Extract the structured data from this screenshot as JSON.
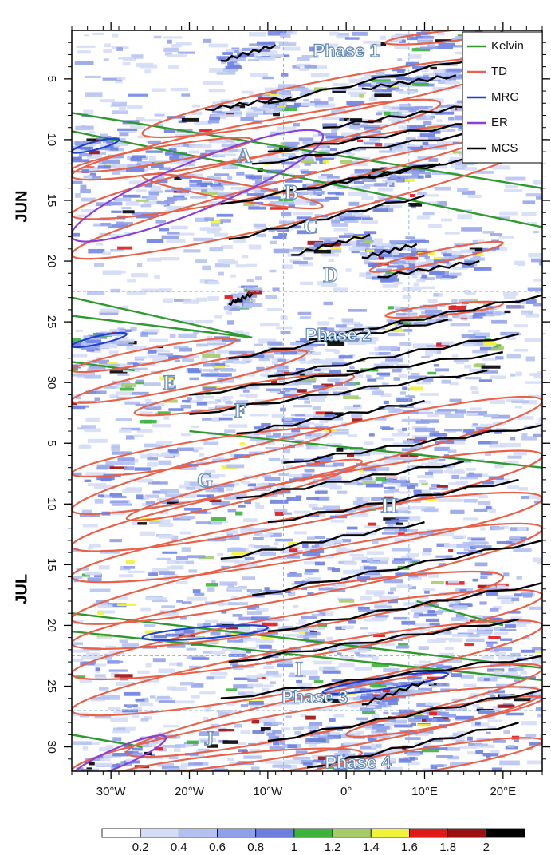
{
  "chart_data": {
    "type": "heatmap",
    "title": "",
    "xlabel": "",
    "ylabel": "",
    "xlim": [
      -35,
      25
    ],
    "x_ticks": [
      {
        "value": -30,
        "label": "30°W"
      },
      {
        "value": -20,
        "label": "20°W"
      },
      {
        "value": -10,
        "label": "10°W"
      },
      {
        "value": 0,
        "label": "0°"
      },
      {
        "value": 10,
        "label": "10°E"
      },
      {
        "value": 20,
        "label": "20°E"
      }
    ],
    "ylim_days_since_jun1": [
      0,
      61
    ],
    "months": [
      {
        "label": "JUN",
        "center_day": 14.5
      },
      {
        "label": "JUL",
        "center_day": 46
      }
    ],
    "y_ticks": [
      {
        "day": 4,
        "label": "5"
      },
      {
        "day": 9,
        "label": "10"
      },
      {
        "day": 14,
        "label": "15"
      },
      {
        "day": 19,
        "label": "20"
      },
      {
        "day": 24,
        "label": "25"
      },
      {
        "day": 29,
        "label": "30"
      },
      {
        "day": 34,
        "label": "5"
      },
      {
        "day": 39,
        "label": "10"
      },
      {
        "day": 44,
        "label": "15"
      },
      {
        "day": 49,
        "label": "20"
      },
      {
        "day": 54,
        "label": "25"
      },
      {
        "day": 59,
        "label": "30"
      }
    ],
    "legend": {
      "placement": "top-right",
      "items": [
        {
          "name": "Kelvin",
          "color": "#2e9a2e"
        },
        {
          "name": "TD",
          "color": "#e8624a"
        },
        {
          "name": "MRG",
          "color": "#1f3fd0"
        },
        {
          "name": "ER",
          "color": "#8a3fd6"
        },
        {
          "name": "MCS",
          "color": "#000000"
        }
      ]
    },
    "colorbar": {
      "labels": [
        "0.2",
        "0.4",
        "0.6",
        "0.8",
        "1",
        "1.2",
        "1.4",
        "1.6",
        "1.8",
        "2"
      ],
      "colors": [
        "#ffffff",
        "#d4dcf6",
        "#b3c1f0",
        "#8f9fe8",
        "#6c7fe0",
        "#3cb43c",
        "#a6cc6a",
        "#f2f23a",
        "#e01818",
        "#9c1010",
        "#000000"
      ]
    },
    "annotations": [
      {
        "text": "A",
        "x": -13,
        "day": 10.5
      },
      {
        "text": "B",
        "x": -7,
        "day": 13.5
      },
      {
        "text": "C",
        "x": -4.5,
        "day": 16.3
      },
      {
        "text": "D",
        "x": -2,
        "day": 20.3
      },
      {
        "text": "E",
        "x": -22.5,
        "day": 29.2
      },
      {
        "text": "F",
        "x": -13.5,
        "day": 31.5
      },
      {
        "text": "G",
        "x": -18,
        "day": 37.2
      },
      {
        "text": "H",
        "x": 5.5,
        "day": 39.3
      },
      {
        "text": "I",
        "x": -6,
        "day": 52.8
      },
      {
        "text": "J",
        "x": -17.5,
        "day": 58.5
      }
    ],
    "phases": [
      {
        "text": "Phase 1",
        "x": 0,
        "day": 1.8
      },
      {
        "text": "Phase 2",
        "x": -1,
        "day": 25.2
      },
      {
        "text": "Phase 3",
        "x": -4,
        "day": 55
      },
      {
        "text": "Phase 4",
        "x": 1.5,
        "day": 60.4
      }
    ],
    "reference_lines": {
      "x": [
        -8,
        8
      ],
      "days": [
        21.5,
        51.5,
        56
      ]
    },
    "series": [
      {
        "name": "Kelvin",
        "color": "#2e9a2e",
        "lines": [
          [
            [
              -35,
              6.8
            ],
            [
              25,
              13
            ]
          ],
          [
            [
              -35,
              8.3
            ],
            [
              25,
              16.2
            ]
          ],
          [
            [
              -35,
              22
            ],
            [
              -12,
              25.3
            ]
          ],
          [
            [
              -35,
              23.5
            ],
            [
              -12,
              25.3
            ]
          ],
          [
            [
              -35,
              27.3
            ],
            [
              -27,
              28
            ]
          ],
          [
            [
              -20,
              33
            ],
            [
              25,
              36
            ]
          ],
          [
            [
              -35,
              48
            ],
            [
              25,
              52.5
            ]
          ],
          [
            [
              -35,
              49.5
            ],
            [
              25,
              53.5
            ]
          ],
          [
            [
              9,
              47
            ],
            [
              20,
              49
            ]
          ],
          [
            [
              -35,
              58
            ],
            [
              -26,
              59
            ]
          ]
        ]
      },
      {
        "name": "TD",
        "color": "#e8624a",
        "ellipses": [
          [
            [
              5,
              1
            ],
            [
              20,
              0
            ]
          ],
          [
            [
              -26,
              8.5
            ],
            [
              22,
              2.5
            ]
          ],
          [
            [
              -35,
              12
            ],
            [
              12,
              6
            ]
          ],
          [
            [
              -35,
              15.2
            ],
            [
              20,
              8
            ]
          ],
          [
            [
              -35,
              18.5
            ],
            [
              25,
              9
            ]
          ],
          [
            [
              -35,
              11.5
            ],
            [
              -12,
              9
            ]
          ],
          [
            [
              3,
              19.8
            ],
            [
              20,
              17.5
            ]
          ],
          [
            [
              -26,
              12
            ],
            [
              -3,
              14.5
            ]
          ],
          [
            [
              5,
              23.5
            ],
            [
              20,
              22.5
            ]
          ],
          [
            [
              -35,
              28
            ],
            [
              -14,
              25.5
            ]
          ],
          [
            [
              -35,
              30.5
            ],
            [
              -5,
              26.5
            ]
          ],
          [
            [
              -27,
              31.5
            ],
            [
              1,
              28.5
            ]
          ],
          [
            [
              -35,
              36.5
            ],
            [
              -2,
              33
            ]
          ],
          [
            [
              -35,
              39.5
            ],
            [
              25,
              30.5
            ]
          ],
          [
            [
              -28,
              40.2
            ],
            [
              2,
              35.5
            ]
          ],
          [
            [
              -35,
              42.5
            ],
            [
              25,
              35
            ]
          ],
          [
            [
              -35,
              45
            ],
            [
              25,
              38.5
            ]
          ],
          [
            [
              -35,
              48.5
            ],
            [
              25,
              41
            ]
          ],
          [
            [
              -35,
              50.5
            ],
            [
              20,
              45
            ]
          ],
          [
            [
              -35,
              53
            ],
            [
              25,
              46.5
            ]
          ],
          [
            [
              -35,
              56
            ],
            [
              25,
              49
            ]
          ],
          [
            [
              -28,
              59.5
            ],
            [
              25,
              52.5
            ]
          ],
          [
            [
              -35,
              61
            ],
            [
              25,
              54.5
            ]
          ],
          [
            [
              0,
              58
            ],
            [
              25,
              55
            ]
          ],
          [
            [
              -30,
              61.5
            ],
            [
              2,
              59.5
            ]
          ],
          [
            [
              -8,
              62
            ],
            [
              25,
              58.5
            ]
          ]
        ]
      },
      {
        "name": "MRG",
        "color": "#1f3fd0",
        "ellipses": [
          [
            [
              -35,
              10
            ],
            [
              -29,
              9
            ]
          ],
          [
            [
              -35,
              26
            ],
            [
              -28,
              25
            ]
          ],
          [
            [
              -26,
              50
            ],
            [
              -10,
              49.2
            ]
          ],
          [
            [
              -3,
              54.5
            ],
            [
              13,
              53
            ]
          ]
        ]
      },
      {
        "name": "ER",
        "color": "#8a3fd6",
        "ellipses": [
          [
            [
              -35,
              17
            ],
            [
              -3,
              8.6
            ]
          ],
          [
            [
              -35,
              61.5
            ],
            [
              -23,
              58.2
            ]
          ]
        ]
      },
      {
        "name": "MCS",
        "color": "#000000",
        "tracks": [
          [
            [
              -16,
              2.5
            ],
            [
              -9,
              1.2
            ]
          ],
          [
            [
              -10,
              6
            ],
            [
              25,
              1
            ]
          ],
          [
            [
              -18,
              6.5
            ],
            [
              -7,
              5.5
            ]
          ],
          [
            [
              2,
              4.8
            ],
            [
              14,
              3.7
            ]
          ],
          [
            [
              -3,
              8
            ],
            [
              18,
              6
            ]
          ],
          [
            [
              -10,
              10
            ],
            [
              20,
              7.3
            ]
          ],
          [
            [
              -12,
              11
            ],
            [
              22,
              8
            ]
          ],
          [
            [
              -16,
              14.3
            ],
            [
              25,
              9.4
            ]
          ],
          [
            [
              -5,
              13
            ],
            [
              12,
              11
            ]
          ],
          [
            [
              -15,
              17.2
            ],
            [
              10,
              13.6
            ]
          ],
          [
            [
              -7,
              18.5
            ],
            [
              3,
              16.8
            ]
          ],
          [
            [
              4,
              20.3
            ],
            [
              17,
              19
            ]
          ],
          [
            [
              2,
              18.7
            ],
            [
              9,
              17.6
            ]
          ],
          [
            [
              -15,
              22.5
            ],
            [
              -12,
              21.7
            ]
          ],
          [
            [
              -5,
              25.5
            ],
            [
              25,
              21.8
            ]
          ],
          [
            [
              -15,
              27
            ],
            [
              13,
              23.8
            ]
          ],
          [
            [
              -10,
              28.5
            ],
            [
              22,
              25
            ]
          ],
          [
            [
              -20,
              30
            ],
            [
              20,
              26.5
            ]
          ],
          [
            [
              -20,
              31.6
            ],
            [
              18,
              28
            ]
          ],
          [
            [
              -14,
              33.2
            ],
            [
              10,
              30.5
            ]
          ],
          [
            [
              -8,
              35.6
            ],
            [
              25,
              32.5
            ]
          ],
          [
            [
              -14,
              38.5
            ],
            [
              15,
              35.5
            ]
          ],
          [
            [
              -10,
              40.5
            ],
            [
              22,
              37
            ]
          ],
          [
            [
              -16,
              43.5
            ],
            [
              10,
              40.5
            ]
          ],
          [
            [
              -12,
              46.5
            ],
            [
              25,
              42
            ]
          ],
          [
            [
              -10,
              49.5
            ],
            [
              25,
              45.5
            ]
          ],
          [
            [
              -15,
              52
            ],
            [
              22,
              48.5
            ]
          ],
          [
            [
              -16,
              55
            ],
            [
              25,
              51.5
            ]
          ],
          [
            [
              -10,
              58.5
            ],
            [
              25,
              54.3
            ]
          ],
          [
            [
              -5,
              60.7
            ],
            [
              22,
              57
            ]
          ],
          [
            [
              2,
              55.5
            ],
            [
              10,
              53.6
            ]
          ]
        ]
      }
    ]
  }
}
